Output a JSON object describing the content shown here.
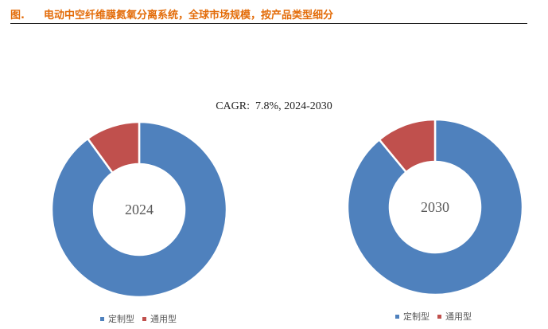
{
  "header": {
    "figure_label": "图.",
    "title": "电动中空纤维膜氮氧分离系统，全球市场规模，按产品类型细分"
  },
  "cagr_text": "CAGR:  7.8%, 2024-2030",
  "chart_data": [
    {
      "type": "pie",
      "center_label": "2024",
      "categories": [
        "定制型",
        "通用型"
      ],
      "values": [
        90,
        10
      ],
      "colors": [
        "#4f81bd",
        "#c0504d"
      ],
      "legend_position": "bottom"
    },
    {
      "type": "pie",
      "center_label": "2030",
      "categories": [
        "定制型",
        "通用型"
      ],
      "values": [
        89,
        11
      ],
      "colors": [
        "#4f81bd",
        "#c0504d"
      ],
      "legend_position": "bottom"
    }
  ]
}
